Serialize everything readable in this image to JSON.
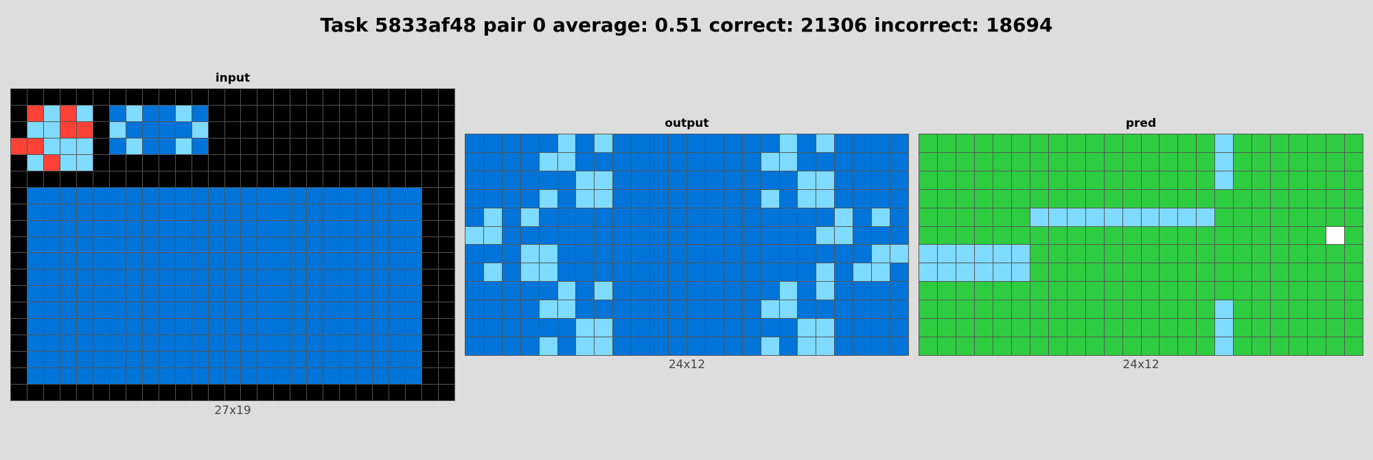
{
  "title": "Task 5833af48 pair 0 average: 0.51 correct: 21306 incorrect: 18694",
  "palette": {
    "0": "#000000",
    "1": "#0074D9",
    "2": "#FF4136",
    "3": "#2ECC40",
    "5": "#FFFFFF",
    "8": "#7FDBFF"
  },
  "panels": [
    {
      "id": "input",
      "label": "input",
      "caption": "27x19",
      "rows": [
        "000000000000000000000000000",
        "028280181181000000000000000",
        "088220811118000000000000000",
        "228880181181000000000000000",
        "082880000000000000000000000",
        "000000000000000000000000000",
        "011111111111111111111111100",
        "011111111111111111111111100",
        "011111111111111111111111100",
        "011111111111111111111111100",
        "011111111111111111111111100",
        "011111111111111111111111100",
        "011111111111111111111111100",
        "011111111111111111111111100",
        "011111111111111111111111100",
        "011111111111111111111111100",
        "011111111111111111111111100",
        "011111111111111111111111100",
        "000000000000000000000000000"
      ]
    },
    {
      "id": "output",
      "label": "output",
      "caption": "24x12",
      "rows": [
        "111118181111111118181111",
        "111188111111111188111111",
        "111111881111111111881111",
        "111181881111111181881111",
        "181811111111111111118181",
        "881111111111111111188111",
        "111881111111111111111188",
        "181881111111111111181881",
        "111118181111111118181111",
        "111188111111111188111111",
        "111111881111111111881111",
        "111181881111111181881111"
      ]
    },
    {
      "id": "pred",
      "label": "pred",
      "caption": "24x12",
      "rows": [
        "333333333333333383333333",
        "333333333333333383333333",
        "333333333333333383333333",
        "333333333333333333333333",
        "333333888888888833333333",
        "333333333333333333333353",
        "888888333333333333333333",
        "888888333333333333333333",
        "333333333333333333333333",
        "333333333333333383333333",
        "333333333333333383333333",
        "333333333333333383333333"
      ]
    }
  ]
}
